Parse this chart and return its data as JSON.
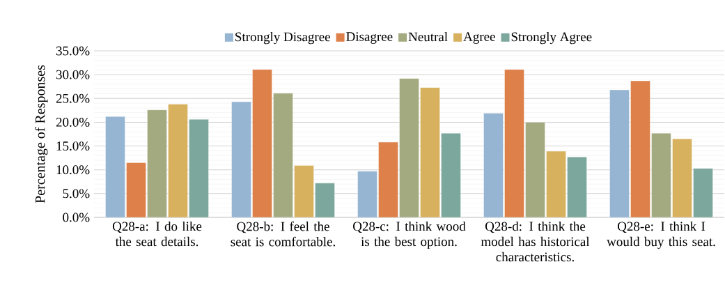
{
  "chart_data": {
    "type": "bar",
    "categories": [
      "Q28-a: I do like the seat details.",
      "Q28-b: I feel the seat is comfortable.",
      "Q28-c: I think wood is the best option.",
      "Q28-d: I think the model has historical characteristics.",
      "Q28-e: I think I would buy this seat."
    ],
    "series": [
      {
        "name": "Strongly Disagree",
        "color": "#95b5d3",
        "values": [
          21.2,
          24.3,
          9.7,
          21.9,
          26.8
        ]
      },
      {
        "name": "Disagree",
        "color": "#dd8049",
        "values": [
          11.5,
          31.1,
          15.8,
          31.1,
          28.7
        ]
      },
      {
        "name": "Neutral",
        "color": "#a4aa7f",
        "values": [
          22.6,
          26.1,
          29.2,
          20.0,
          17.7
        ]
      },
      {
        "name": "Agree",
        "color": "#d7b15e",
        "values": [
          23.8,
          10.9,
          27.3,
          13.9,
          16.5
        ]
      },
      {
        "name": "Strongly Agree",
        "color": "#7ca79c",
        "values": [
          20.6,
          7.2,
          17.7,
          12.7,
          10.3
        ]
      }
    ],
    "ylabel": "Percentage of Responses",
    "ylim": [
      0,
      35
    ],
    "yticks": [
      {
        "value": 0,
        "label": "0.0%"
      },
      {
        "value": 5,
        "label": "5.0%"
      },
      {
        "value": 10,
        "label": "10.0%"
      },
      {
        "value": 15,
        "label": "15.0%"
      },
      {
        "value": 20,
        "label": "20.0%"
      },
      {
        "value": 25,
        "label": "25.0%"
      },
      {
        "value": 30,
        "label": "30.0%"
      },
      {
        "value": 35,
        "label": "35.0%"
      }
    ],
    "grid": "y",
    "legend": "top"
  }
}
